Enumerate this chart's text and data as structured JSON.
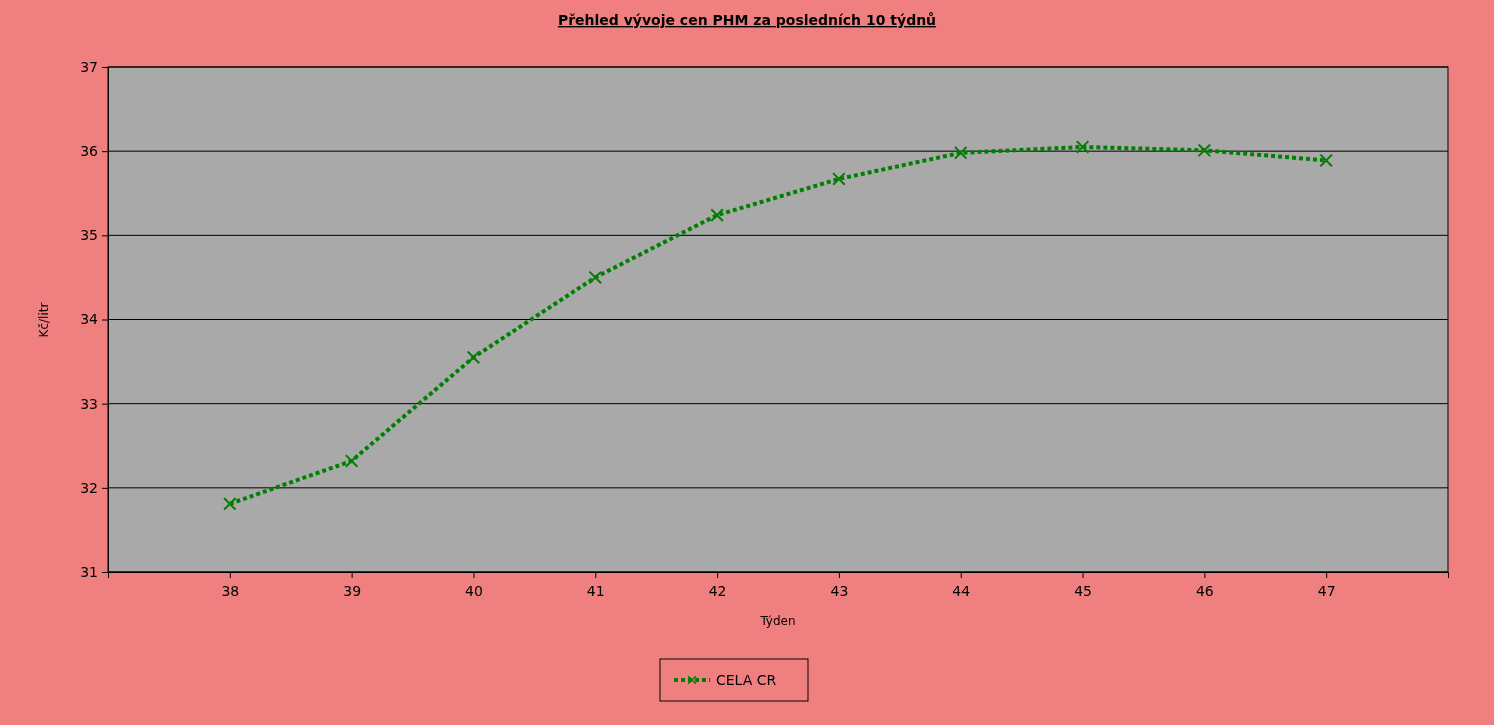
{
  "chart_data": {
    "type": "line",
    "title": "Přehled vývoje cen PHM za posledních 10 týdnů",
    "xlabel": "Týden",
    "ylabel": "Kč/litr",
    "x": [
      38,
      39,
      40,
      41,
      42,
      43,
      44,
      45,
      46,
      47
    ],
    "series": [
      {
        "name": "CELA CR",
        "color": "#008000",
        "values": [
          31.81,
          32.32,
          33.55,
          34.5,
          35.24,
          35.67,
          35.98,
          36.05,
          36.01,
          35.89
        ]
      }
    ],
    "xlim": [
      37,
      48
    ],
    "xticks": [
      38,
      39,
      40,
      41,
      42,
      43,
      44,
      45,
      46,
      47
    ],
    "ylim": [
      31,
      37
    ],
    "yticks": [
      31,
      32,
      33,
      34,
      35,
      36,
      37
    ],
    "grid": "y",
    "legend": "bottom",
    "marker": "cross",
    "line_style": "dotted"
  }
}
